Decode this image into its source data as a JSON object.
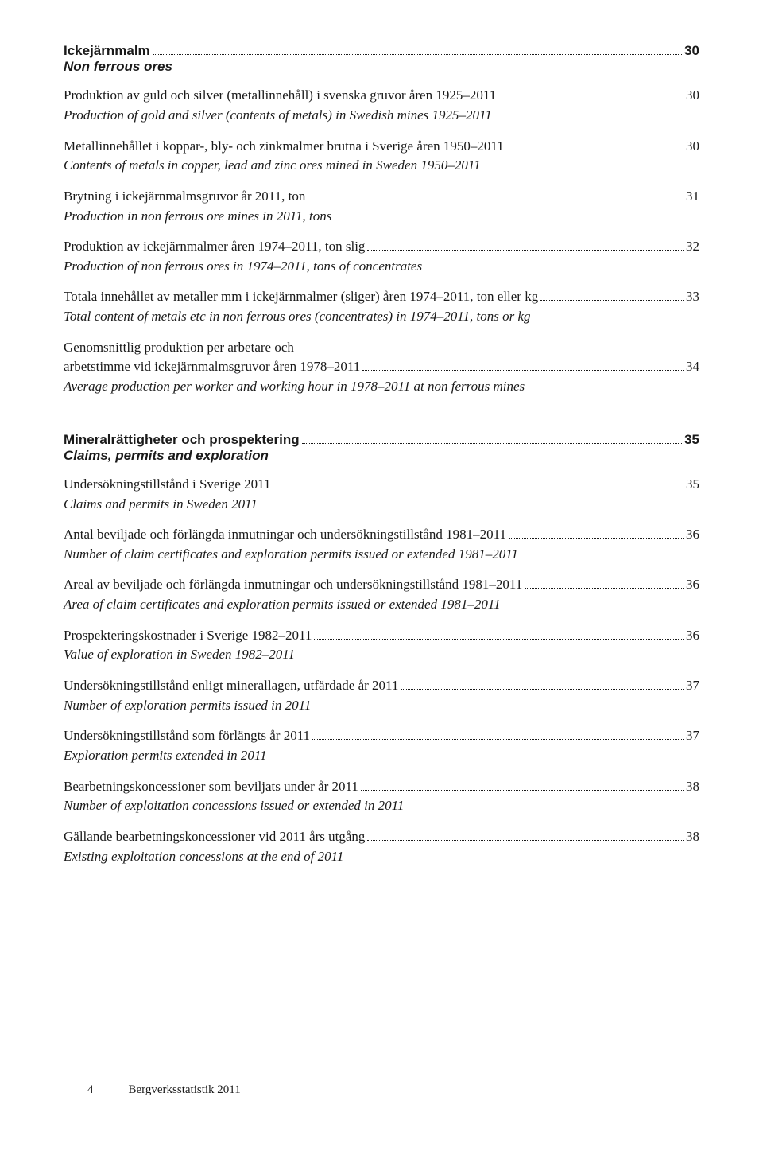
{
  "section1": {
    "heading": "Ickejärnmalm",
    "heading_page": "30",
    "sub": "Non ferrous ores",
    "entries": [
      {
        "sv": "Produktion av guld och silver (metallinnehåll) i svenska gruvor åren 1925–2011",
        "page": "30",
        "en": "Production of gold and silver (contents of metals) in Swedish mines 1925–2011"
      },
      {
        "sv": "Metallinnehållet i koppar-, bly- och zinkmalmer brutna i Sverige åren 1950–2011",
        "page": "30",
        "en": "Contents of metals in copper, lead and zinc ores mined in Sweden 1950–2011"
      },
      {
        "sv": "Brytning i ickejärnmalmsgruvor år 2011, ton",
        "page": "31",
        "en": "Production in non ferrous ore mines in 2011, tons"
      },
      {
        "sv": "Produktion av ickejärnmalmer åren 1974–2011, ton slig",
        "page": "32",
        "en": "Production of non ferrous ores in 1974–2011, tons of concentrates"
      },
      {
        "sv": "Totala innehållet av metaller mm i ickejärnmalmer (sliger) åren 1974–2011, ton eller kg",
        "page": "33",
        "en": "Total content of metals etc in non ferrous ores (concentrates) in 1974–2011, tons or kg"
      },
      {
        "sv_line1": "Genomsnittlig produktion per arbetare och",
        "sv_line2": "arbetstimme vid ickejärnmalmsgruvor åren 1978–2011",
        "page": "34",
        "en": "Average production per worker and working hour in 1978–2011 at non ferrous mines"
      }
    ]
  },
  "section2": {
    "heading": "Mineralrättigheter och prospektering",
    "heading_page": "35",
    "sub": "Claims, permits and exploration",
    "entries": [
      {
        "sv": "Undersökningstillstånd i Sverige 2011",
        "page": "35",
        "en": "Claims and permits in Sweden 2011"
      },
      {
        "sv": "Antal beviljade och förlängda inmutningar och undersökningstillstånd 1981–2011",
        "page": "36",
        "en": "Number of claim certificates and exploration permits issued or extended 1981–2011"
      },
      {
        "sv": "Areal av beviljade och förlängda inmutningar och undersökningstillstånd 1981–2011",
        "page": "36",
        "en": "Area of claim certificates and exploration permits issued or extended 1981–2011"
      },
      {
        "sv": "Prospekteringskostnader i Sverige 1982–2011",
        "page": "36",
        "en": "Value of exploration in Sweden 1982–2011"
      },
      {
        "sv": "Undersökningstillstånd enligt minerallagen, utfärdade år 2011",
        "page": "37",
        "en": "Number of exploration permits issued in 2011"
      },
      {
        "sv": "Undersökningstillstånd som förlängts år 2011",
        "page": "37",
        "en": "Exploration permits extended in 2011"
      },
      {
        "sv": "Bearbetningskoncessioner som beviljats under år 2011",
        "page": "38",
        "en": "Number of exploitation concessions issued or extended in 2011"
      },
      {
        "sv": "Gällande bearbetningskoncessioner vid 2011 års utgång",
        "page": "38",
        "en": "Existing exploitation concessions at the end of 2011"
      }
    ]
  },
  "footer": {
    "pagenum": "4",
    "title": "Bergverksstatistik 2011"
  },
  "style": {
    "text_color": "#1a1a1a",
    "background": "#ffffff",
    "heading_font": "Arial",
    "body_font": "Georgia",
    "heading_size_pt": 13,
    "body_size_pt": 13
  }
}
